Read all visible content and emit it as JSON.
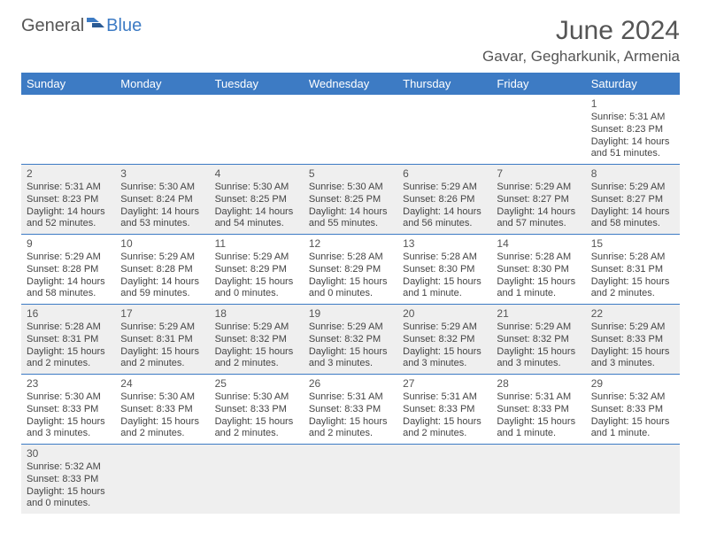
{
  "logo": {
    "word1": "General",
    "word2": "Blue"
  },
  "header": {
    "month_title": "June 2024",
    "location": "Gavar, Gegharkunik, Armenia"
  },
  "colors": {
    "header_bg": "#3d7bc4",
    "header_text": "#ffffff",
    "row_alt_bg": "#efefef",
    "text": "#444444"
  },
  "day_headers": [
    "Sunday",
    "Monday",
    "Tuesday",
    "Wednesday",
    "Thursday",
    "Friday",
    "Saturday"
  ],
  "weeks": [
    [
      null,
      null,
      null,
      null,
      null,
      null,
      {
        "n": "1",
        "sunrise": "Sunrise: 5:31 AM",
        "sunset": "Sunset: 8:23 PM",
        "daylight1": "Daylight: 14 hours",
        "daylight2": "and 51 minutes."
      }
    ],
    [
      {
        "n": "2",
        "sunrise": "Sunrise: 5:31 AM",
        "sunset": "Sunset: 8:23 PM",
        "daylight1": "Daylight: 14 hours",
        "daylight2": "and 52 minutes."
      },
      {
        "n": "3",
        "sunrise": "Sunrise: 5:30 AM",
        "sunset": "Sunset: 8:24 PM",
        "daylight1": "Daylight: 14 hours",
        "daylight2": "and 53 minutes."
      },
      {
        "n": "4",
        "sunrise": "Sunrise: 5:30 AM",
        "sunset": "Sunset: 8:25 PM",
        "daylight1": "Daylight: 14 hours",
        "daylight2": "and 54 minutes."
      },
      {
        "n": "5",
        "sunrise": "Sunrise: 5:30 AM",
        "sunset": "Sunset: 8:25 PM",
        "daylight1": "Daylight: 14 hours",
        "daylight2": "and 55 minutes."
      },
      {
        "n": "6",
        "sunrise": "Sunrise: 5:29 AM",
        "sunset": "Sunset: 8:26 PM",
        "daylight1": "Daylight: 14 hours",
        "daylight2": "and 56 minutes."
      },
      {
        "n": "7",
        "sunrise": "Sunrise: 5:29 AM",
        "sunset": "Sunset: 8:27 PM",
        "daylight1": "Daylight: 14 hours",
        "daylight2": "and 57 minutes."
      },
      {
        "n": "8",
        "sunrise": "Sunrise: 5:29 AM",
        "sunset": "Sunset: 8:27 PM",
        "daylight1": "Daylight: 14 hours",
        "daylight2": "and 58 minutes."
      }
    ],
    [
      {
        "n": "9",
        "sunrise": "Sunrise: 5:29 AM",
        "sunset": "Sunset: 8:28 PM",
        "daylight1": "Daylight: 14 hours",
        "daylight2": "and 58 minutes."
      },
      {
        "n": "10",
        "sunrise": "Sunrise: 5:29 AM",
        "sunset": "Sunset: 8:28 PM",
        "daylight1": "Daylight: 14 hours",
        "daylight2": "and 59 minutes."
      },
      {
        "n": "11",
        "sunrise": "Sunrise: 5:29 AM",
        "sunset": "Sunset: 8:29 PM",
        "daylight1": "Daylight: 15 hours",
        "daylight2": "and 0 minutes."
      },
      {
        "n": "12",
        "sunrise": "Sunrise: 5:28 AM",
        "sunset": "Sunset: 8:29 PM",
        "daylight1": "Daylight: 15 hours",
        "daylight2": "and 0 minutes."
      },
      {
        "n": "13",
        "sunrise": "Sunrise: 5:28 AM",
        "sunset": "Sunset: 8:30 PM",
        "daylight1": "Daylight: 15 hours",
        "daylight2": "and 1 minute."
      },
      {
        "n": "14",
        "sunrise": "Sunrise: 5:28 AM",
        "sunset": "Sunset: 8:30 PM",
        "daylight1": "Daylight: 15 hours",
        "daylight2": "and 1 minute."
      },
      {
        "n": "15",
        "sunrise": "Sunrise: 5:28 AM",
        "sunset": "Sunset: 8:31 PM",
        "daylight1": "Daylight: 15 hours",
        "daylight2": "and 2 minutes."
      }
    ],
    [
      {
        "n": "16",
        "sunrise": "Sunrise: 5:28 AM",
        "sunset": "Sunset: 8:31 PM",
        "daylight1": "Daylight: 15 hours",
        "daylight2": "and 2 minutes."
      },
      {
        "n": "17",
        "sunrise": "Sunrise: 5:29 AM",
        "sunset": "Sunset: 8:31 PM",
        "daylight1": "Daylight: 15 hours",
        "daylight2": "and 2 minutes."
      },
      {
        "n": "18",
        "sunrise": "Sunrise: 5:29 AM",
        "sunset": "Sunset: 8:32 PM",
        "daylight1": "Daylight: 15 hours",
        "daylight2": "and 2 minutes."
      },
      {
        "n": "19",
        "sunrise": "Sunrise: 5:29 AM",
        "sunset": "Sunset: 8:32 PM",
        "daylight1": "Daylight: 15 hours",
        "daylight2": "and 3 minutes."
      },
      {
        "n": "20",
        "sunrise": "Sunrise: 5:29 AM",
        "sunset": "Sunset: 8:32 PM",
        "daylight1": "Daylight: 15 hours",
        "daylight2": "and 3 minutes."
      },
      {
        "n": "21",
        "sunrise": "Sunrise: 5:29 AM",
        "sunset": "Sunset: 8:32 PM",
        "daylight1": "Daylight: 15 hours",
        "daylight2": "and 3 minutes."
      },
      {
        "n": "22",
        "sunrise": "Sunrise: 5:29 AM",
        "sunset": "Sunset: 8:33 PM",
        "daylight1": "Daylight: 15 hours",
        "daylight2": "and 3 minutes."
      }
    ],
    [
      {
        "n": "23",
        "sunrise": "Sunrise: 5:30 AM",
        "sunset": "Sunset: 8:33 PM",
        "daylight1": "Daylight: 15 hours",
        "daylight2": "and 3 minutes."
      },
      {
        "n": "24",
        "sunrise": "Sunrise: 5:30 AM",
        "sunset": "Sunset: 8:33 PM",
        "daylight1": "Daylight: 15 hours",
        "daylight2": "and 2 minutes."
      },
      {
        "n": "25",
        "sunrise": "Sunrise: 5:30 AM",
        "sunset": "Sunset: 8:33 PM",
        "daylight1": "Daylight: 15 hours",
        "daylight2": "and 2 minutes."
      },
      {
        "n": "26",
        "sunrise": "Sunrise: 5:31 AM",
        "sunset": "Sunset: 8:33 PM",
        "daylight1": "Daylight: 15 hours",
        "daylight2": "and 2 minutes."
      },
      {
        "n": "27",
        "sunrise": "Sunrise: 5:31 AM",
        "sunset": "Sunset: 8:33 PM",
        "daylight1": "Daylight: 15 hours",
        "daylight2": "and 2 minutes."
      },
      {
        "n": "28",
        "sunrise": "Sunrise: 5:31 AM",
        "sunset": "Sunset: 8:33 PM",
        "daylight1": "Daylight: 15 hours",
        "daylight2": "and 1 minute."
      },
      {
        "n": "29",
        "sunrise": "Sunrise: 5:32 AM",
        "sunset": "Sunset: 8:33 PM",
        "daylight1": "Daylight: 15 hours",
        "daylight2": "and 1 minute."
      }
    ],
    [
      {
        "n": "30",
        "sunrise": "Sunrise: 5:32 AM",
        "sunset": "Sunset: 8:33 PM",
        "daylight1": "Daylight: 15 hours",
        "daylight2": "and 0 minutes."
      },
      null,
      null,
      null,
      null,
      null,
      null
    ]
  ]
}
